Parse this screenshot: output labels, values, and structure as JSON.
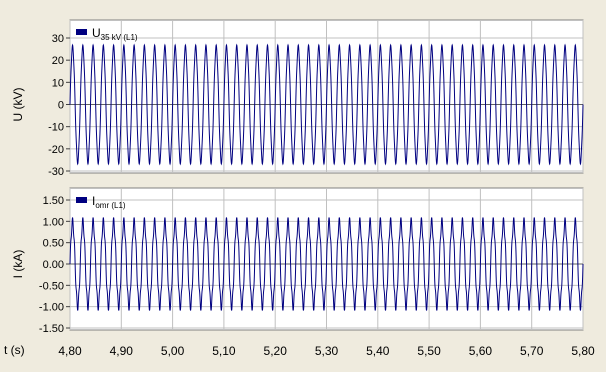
{
  "chart_data": [
    {
      "type": "line",
      "legend": {
        "name": "U",
        "sub": "35 kV (L1)",
        "position": "top-left",
        "swatch_color": "#000080"
      },
      "ylabel": "U (kV)",
      "ylim": [
        -30,
        30
      ],
      "yticks": [
        "30",
        "20",
        "10",
        "0",
        "-10",
        "-20",
        "-30"
      ],
      "ytick_values": [
        30,
        20,
        10,
        0,
        -10,
        -20,
        -30
      ],
      "xlim": [
        4.8,
        5.8
      ],
      "grid": true,
      "line_color": "#000080",
      "signal": {
        "frequency_hz": 50,
        "peak": 26.5,
        "harmonic_ratio": 0.03
      }
    },
    {
      "type": "line",
      "legend": {
        "name": "I",
        "sub": "omr (L1)",
        "position": "top-left",
        "swatch_color": "#000080"
      },
      "ylabel": "I (kA)",
      "ylim": [
        -1.5,
        1.5
      ],
      "yticks": [
        "1.50",
        "1.00",
        "0.50",
        "0.00",
        "-0.50",
        "-1.00",
        "-1.50"
      ],
      "ytick_values": [
        1.5,
        1.0,
        0.5,
        0.0,
        -0.5,
        -1.0,
        -1.5
      ],
      "xlim": [
        4.8,
        5.8
      ],
      "grid": true,
      "line_color": "#000080",
      "signal": {
        "frequency_hz": 50,
        "peak": 1.05,
        "harmonic_ratio": 0.1
      }
    }
  ],
  "x_axis": {
    "label": "t (s)",
    "ticks": [
      "4,80",
      "4,90",
      "5,00",
      "5,10",
      "5,20",
      "5,30",
      "5,40",
      "5,50",
      "5,60",
      "5,70",
      "5,80"
    ],
    "tick_values": [
      4.8,
      4.9,
      5.0,
      5.1,
      5.2,
      5.3,
      5.4,
      5.5,
      5.6,
      5.7,
      5.8
    ]
  },
  "colors": {
    "background": "#efebde",
    "plot_background": "#ffffff",
    "grid": "#c0c0c0",
    "zero_line": "#606060"
  }
}
